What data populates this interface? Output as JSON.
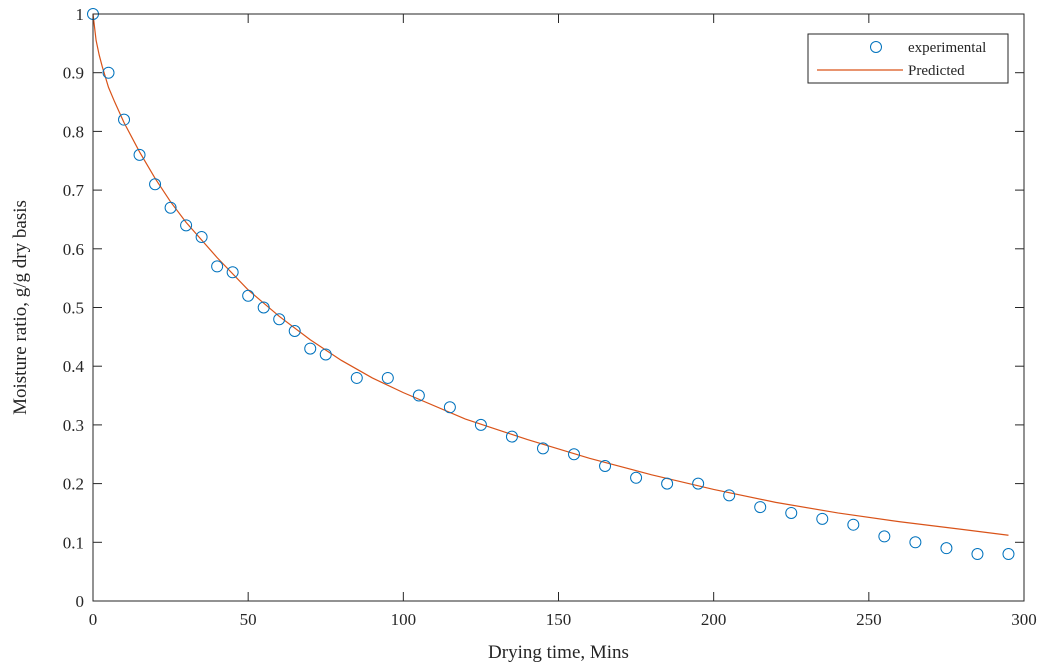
{
  "chart_data": {
    "type": "scatter",
    "title": "",
    "xlabel": "Drying time, Mins",
    "ylabel": "Moisture ratio, g/g dry basis",
    "xlim": [
      0,
      300
    ],
    "ylim": [
      0,
      1
    ],
    "xticks": [
      0,
      50,
      100,
      150,
      200,
      250,
      300
    ],
    "yticks": [
      0,
      0.1,
      0.2,
      0.3,
      0.4,
      0.5,
      0.6,
      0.7,
      0.8,
      0.9,
      1
    ],
    "xtick_labels": [
      "0",
      "50",
      "100",
      "150",
      "200",
      "250",
      "300"
    ],
    "ytick_labels": [
      "0",
      "0.1",
      "0.2",
      "0.3",
      "0.4",
      "0.5",
      "0.6",
      "0.7",
      "0.8",
      "0.9",
      "1"
    ],
    "grid": false,
    "legend_position": "top-right",
    "series": [
      {
        "name": "experimental",
        "style": "open-circle-markers",
        "color": "#0072BD",
        "x": [
          0,
          5,
          10,
          15,
          20,
          25,
          30,
          35,
          40,
          45,
          50,
          55,
          60,
          65,
          70,
          75,
          85,
          95,
          105,
          115,
          125,
          135,
          145,
          155,
          165,
          175,
          185,
          195,
          205,
          215,
          225,
          235,
          245,
          255,
          265,
          275,
          285,
          295
        ],
        "y": [
          1.0,
          0.9,
          0.82,
          0.76,
          0.71,
          0.67,
          0.64,
          0.62,
          0.57,
          0.56,
          0.52,
          0.5,
          0.48,
          0.46,
          0.43,
          0.42,
          0.38,
          0.38,
          0.35,
          0.33,
          0.3,
          0.28,
          0.26,
          0.25,
          0.23,
          0.21,
          0.2,
          0.2,
          0.18,
          0.16,
          0.15,
          0.14,
          0.13,
          0.11,
          0.1,
          0.09,
          0.08,
          0.08
        ]
      },
      {
        "name": "Predicted",
        "style": "line",
        "color": "#D95319",
        "x": [
          0,
          1,
          2,
          3,
          5,
          7,
          10,
          15,
          20,
          25,
          30,
          40,
          50,
          60,
          70,
          80,
          90,
          100,
          120,
          140,
          160,
          180,
          200,
          220,
          240,
          260,
          280,
          295
        ],
        "y": [
          1.0,
          0.955,
          0.93,
          0.91,
          0.875,
          0.85,
          0.815,
          0.765,
          0.72,
          0.68,
          0.645,
          0.585,
          0.53,
          0.485,
          0.445,
          0.41,
          0.38,
          0.355,
          0.31,
          0.275,
          0.243,
          0.215,
          0.19,
          0.168,
          0.15,
          0.135,
          0.122,
          0.112
        ]
      }
    ]
  }
}
